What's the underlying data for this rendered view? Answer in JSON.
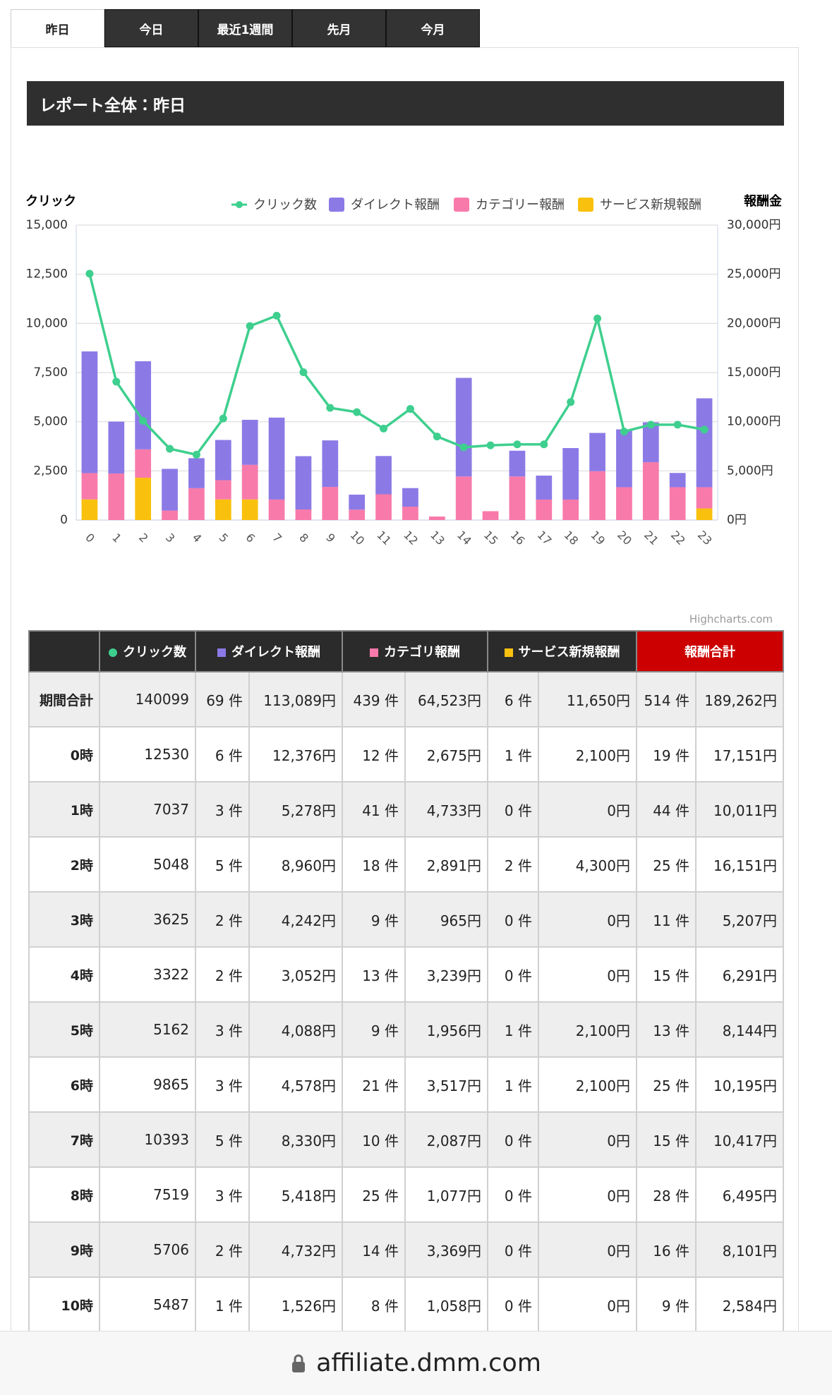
{
  "tabs": [
    "昨日",
    "今日",
    "最近1週間",
    "先月",
    "今月"
  ],
  "report_title": "レポート全体：昨日",
  "chart_data": {
    "type": "combo",
    "y_title": "クリック",
    "y2_title": "報酬金",
    "credits": "Highcharts.com",
    "categories": [
      "0",
      "1",
      "2",
      "3",
      "4",
      "5",
      "6",
      "7",
      "8",
      "9",
      "10",
      "11",
      "12",
      "13",
      "14",
      "15",
      "16",
      "17",
      "18",
      "19",
      "20",
      "21",
      "22",
      "23"
    ],
    "series": [
      {
        "name": "クリック数",
        "type": "line",
        "color": "#3ecf8e",
        "values": [
          12530,
          7037,
          5048,
          3625,
          3322,
          5162,
          9865,
          10393,
          7519,
          5706,
          5487,
          4650,
          5650,
          4250,
          3700,
          3800,
          3850,
          3850,
          6000,
          10250,
          4500,
          4850,
          4850,
          4600
        ]
      },
      {
        "name": "ダイレクト報酬",
        "type": "bar",
        "axis": "y2",
        "color": "#8b7ae6",
        "values": [
          12376,
          5278,
          8960,
          4242,
          3052,
          4088,
          4578,
          8330,
          5418,
          4732,
          1526,
          3890,
          1890,
          0,
          10030,
          0,
          2620,
          2440,
          5240,
          3890,
          5880,
          4060,
          1450,
          9040
        ]
      },
      {
        "name": "カテゴリー報酬",
        "type": "bar",
        "axis": "y2",
        "color": "#f87aaa",
        "values": [
          2675,
          4733,
          2891,
          965,
          3239,
          1956,
          3517,
          2087,
          1077,
          3369,
          1058,
          2620,
          1360,
          360,
          4430,
          900,
          4430,
          2080,
          2080,
          4970,
          3340,
          5880,
          3340,
          2160
        ]
      },
      {
        "name": "サービス新規報酬",
        "type": "bar",
        "axis": "y2",
        "color": "#f9c10e",
        "values": [
          2100,
          0,
          4300,
          0,
          0,
          2100,
          2100,
          0,
          0,
          0,
          0,
          0,
          0,
          0,
          0,
          0,
          0,
          0,
          0,
          0,
          0,
          0,
          0,
          1180
        ]
      }
    ],
    "ylim": [
      0,
      15000
    ],
    "yticks": [
      0,
      {
        "value": 2500,
        "label": "2,500"
      },
      {
        "value": 5000,
        "label": "5,000"
      },
      {
        "value": 7500,
        "label": "7,500"
      },
      {
        "value": 10000,
        "label": "10,000"
      },
      {
        "value": 12500,
        "label": "12,500"
      },
      {
        "value": 15000,
        "label": "15,000"
      }
    ],
    "y2lim": [
      0,
      30000
    ],
    "y2ticks": [
      {
        "value": 0,
        "label": "0円"
      },
      {
        "value": 5000,
        "label": "5,000円"
      },
      {
        "value": 10000,
        "label": "10,000円"
      },
      {
        "value": 15000,
        "label": "15,000円"
      },
      {
        "value": 20000,
        "label": "20,000円"
      },
      {
        "value": 25000,
        "label": "25,000円"
      },
      {
        "value": 30000,
        "label": "30,000円"
      }
    ],
    "grid": true
  },
  "table": {
    "header": [
      "クリック数",
      "ダイレクト報酬",
      "カテゴリ報酬",
      "サービス新規報酬",
      "報酬合計"
    ],
    "header_colors": [
      "#3ecf8e",
      "#8b7ae6",
      "#f87aaa",
      "#f9c10e"
    ],
    "rows": [
      [
        "期間合計",
        "140099",
        "69 件",
        "113,089円",
        "439 件",
        "64,523円",
        "6 件",
        "11,650円",
        "514 件",
        "189,262円"
      ],
      [
        "0時",
        "12530",
        "6 件",
        "12,376円",
        "12 件",
        "2,675円",
        "1 件",
        "2,100円",
        "19 件",
        "17,151円"
      ],
      [
        "1時",
        "7037",
        "3 件",
        "5,278円",
        "41 件",
        "4,733円",
        "0 件",
        "0円",
        "44 件",
        "10,011円"
      ],
      [
        "2時",
        "5048",
        "5 件",
        "8,960円",
        "18 件",
        "2,891円",
        "2 件",
        "4,300円",
        "25 件",
        "16,151円"
      ],
      [
        "3時",
        "3625",
        "2 件",
        "4,242円",
        "9 件",
        "965円",
        "0 件",
        "0円",
        "11 件",
        "5,207円"
      ],
      [
        "4時",
        "3322",
        "2 件",
        "3,052円",
        "13 件",
        "3,239円",
        "0 件",
        "0円",
        "15 件",
        "6,291円"
      ],
      [
        "5時",
        "5162",
        "3 件",
        "4,088円",
        "9 件",
        "1,956円",
        "1 件",
        "2,100円",
        "13 件",
        "8,144円"
      ],
      [
        "6時",
        "9865",
        "3 件",
        "4,578円",
        "21 件",
        "3,517円",
        "1 件",
        "2,100円",
        "25 件",
        "10,195円"
      ],
      [
        "7時",
        "10393",
        "5 件",
        "8,330円",
        "10 件",
        "2,087円",
        "0 件",
        "0円",
        "15 件",
        "10,417円"
      ],
      [
        "8時",
        "7519",
        "3 件",
        "5,418円",
        "25 件",
        "1,077円",
        "0 件",
        "0円",
        "28 件",
        "6,495円"
      ],
      [
        "9時",
        "5706",
        "2 件",
        "4,732円",
        "14 件",
        "3,369円",
        "0 件",
        "0円",
        "16 件",
        "8,101円"
      ],
      [
        "10時",
        "5487",
        "1 件",
        "1,526円",
        "8 件",
        "1,058円",
        "0 件",
        "0円",
        "9 件",
        "2,584円"
      ]
    ]
  },
  "footer_url": "affiliate.dmm.com"
}
